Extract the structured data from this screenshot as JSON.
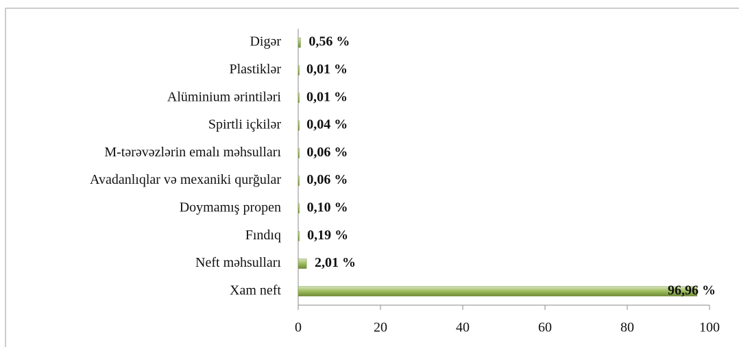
{
  "chart_data": {
    "type": "bar",
    "orientation": "horizontal",
    "categories": [
      "Xam neft",
      "Neft məhsulları",
      "Fındıq",
      "Doymamış propen",
      "Avadanlıqlar və mexaniki qurğular",
      "M-tərəvəzlərin emalı məhsulları",
      "Spirtli içkilər",
      "Alüminium ərintiləri",
      "Plastiklər",
      "Digər"
    ],
    "values": [
      96.96,
      2.01,
      0.19,
      0.1,
      0.06,
      0.06,
      0.04,
      0.01,
      0.01,
      0.56
    ],
    "value_labels": [
      "96,96 %",
      "2,01 %",
      "0,19 %",
      "0,10 %",
      "0,06 %",
      "0,06 %",
      "0,04 %",
      "0,01 %",
      "0,01 %",
      "0,56 %"
    ],
    "color": "#9bbb59",
    "xlim": [
      0,
      100
    ],
    "xticks": [
      0,
      20,
      40,
      60,
      80,
      100
    ]
  }
}
